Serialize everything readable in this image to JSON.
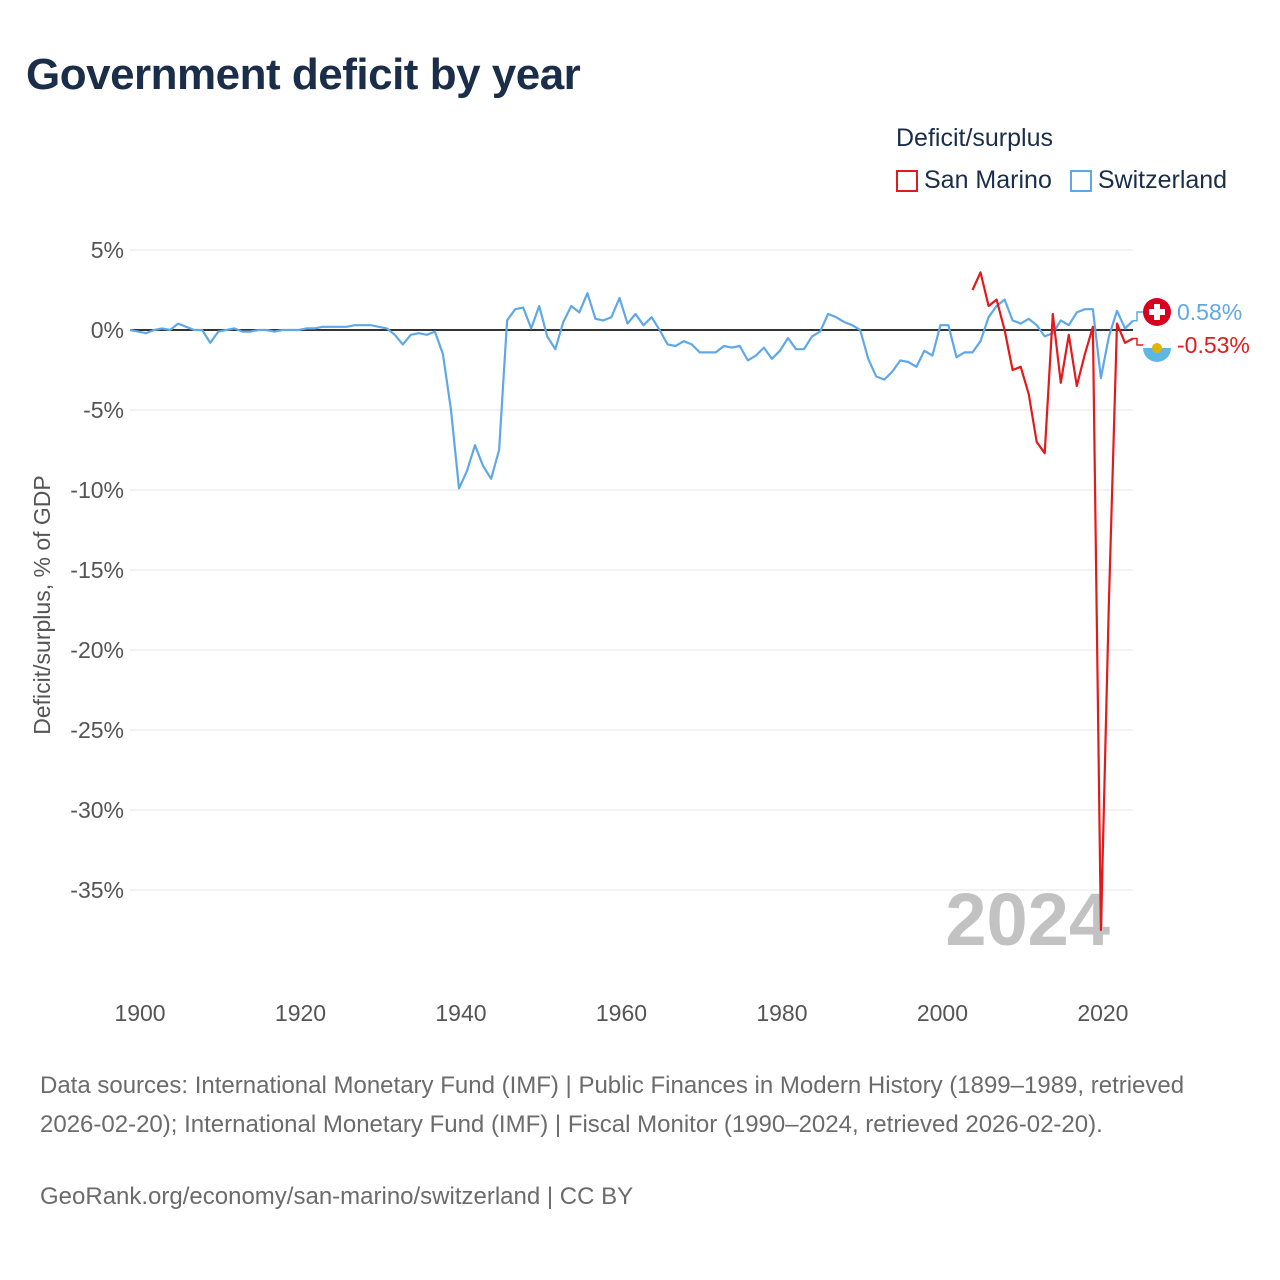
{
  "title": "Government deficit by year",
  "legend": {
    "title": "Deficit/surplus",
    "items": [
      {
        "name": "San Marino",
        "color": "#e31a1c"
      },
      {
        "name": "Switzerland",
        "color": "#5fa8e8"
      }
    ]
  },
  "chart_data": {
    "type": "line",
    "title": "Government deficit by year",
    "xlabel": "",
    "ylabel": "Deficit/surplus, % of GDP",
    "xlim": [
      1899,
      2024
    ],
    "ylim": [
      -38.5,
      5
    ],
    "x_ticks": [
      1900,
      1920,
      1940,
      1960,
      1980,
      2000,
      2020
    ],
    "y_ticks": [
      5,
      0,
      -5,
      -10,
      -15,
      -20,
      -25,
      -30,
      -35
    ],
    "y_tick_labels": [
      "5%",
      "0%",
      "-5%",
      "-10%",
      "-15%",
      "-20%",
      "-25%",
      "-30%",
      "-35%"
    ],
    "x_tick_labels": [
      "1900",
      "1920",
      "1940",
      "1960",
      "1980",
      "2000",
      "2020"
    ],
    "highlight_year": "2024",
    "zero_line": true,
    "grid": true,
    "series": [
      {
        "name": "Switzerland",
        "color": "#5fa8e8",
        "end_label": "0.58%",
        "x": [
          1899,
          1900,
          1901,
          1902,
          1903,
          1904,
          1905,
          1906,
          1907,
          1908,
          1909,
          1910,
          1911,
          1912,
          1913,
          1914,
          1915,
          1916,
          1917,
          1918,
          1919,
          1920,
          1921,
          1922,
          1923,
          1924,
          1925,
          1926,
          1927,
          1928,
          1929,
          1930,
          1931,
          1932,
          1933,
          1934,
          1935,
          1936,
          1937,
          1938,
          1939,
          1940,
          1941,
          1942,
          1943,
          1944,
          1945,
          1946,
          1947,
          1948,
          1949,
          1950,
          1951,
          1952,
          1953,
          1954,
          1955,
          1956,
          1957,
          1958,
          1959,
          1960,
          1961,
          1962,
          1963,
          1964,
          1965,
          1966,
          1967,
          1968,
          1969,
          1970,
          1971,
          1972,
          1973,
          1974,
          1975,
          1976,
          1977,
          1978,
          1979,
          1980,
          1981,
          1982,
          1983,
          1984,
          1985,
          1986,
          1987,
          1988,
          1989,
          1990,
          1991,
          1992,
          1993,
          1994,
          1995,
          1996,
          1997,
          1998,
          1999,
          2000,
          2001,
          2002,
          2003,
          2004,
          2005,
          2006,
          2007,
          2008,
          2009,
          2010,
          2011,
          2012,
          2013,
          2014,
          2015,
          2016,
          2017,
          2018,
          2019,
          2020,
          2021,
          2022,
          2023,
          2024
        ],
        "values": [
          0.0,
          -0.1,
          -0.2,
          0.0,
          0.1,
          0.0,
          0.4,
          0.2,
          0.0,
          0.0,
          -0.8,
          -0.1,
          0.0,
          0.1,
          -0.1,
          -0.1,
          0.0,
          0.0,
          -0.1,
          0.0,
          0.0,
          0.0,
          0.1,
          0.1,
          0.2,
          0.2,
          0.2,
          0.2,
          0.3,
          0.3,
          0.3,
          0.2,
          0.1,
          -0.3,
          -0.9,
          -0.3,
          -0.2,
          -0.3,
          -0.1,
          -1.5,
          -5.0,
          -9.9,
          -8.8,
          -7.2,
          -8.5,
          -9.3,
          -7.5,
          0.6,
          1.3,
          1.4,
          0.1,
          1.5,
          -0.4,
          -1.2,
          0.5,
          1.5,
          1.1,
          2.3,
          0.7,
          0.6,
          0.8,
          2.0,
          0.4,
          1.0,
          0.3,
          0.8,
          0.0,
          -0.9,
          -1.0,
          -0.7,
          -0.9,
          -1.4,
          -1.4,
          -1.4,
          -1.0,
          -1.1,
          -1.0,
          -1.9,
          -1.6,
          -1.1,
          -1.8,
          -1.3,
          -0.5,
          -1.2,
          -1.2,
          -0.4,
          -0.1,
          1.0,
          0.8,
          0.5,
          0.3,
          0.0,
          -1.8,
          -2.9,
          -3.1,
          -2.6,
          -1.9,
          -2.0,
          -2.3,
          -1.3,
          -1.6,
          0.3,
          0.3,
          -1.7,
          -1.4,
          -1.4,
          -0.7,
          0.8,
          1.5,
          1.9,
          0.6,
          0.4,
          0.7,
          0.3,
          -0.4,
          -0.2,
          0.6,
          0.3,
          1.1,
          1.3,
          1.3,
          -3.0,
          -0.4,
          1.2,
          0.1,
          0.58
        ]
      },
      {
        "name": "San Marino",
        "color": "#e31a1c",
        "end_label": "-0.53%",
        "x": [
          2004,
          2005,
          2006,
          2007,
          2008,
          2009,
          2010,
          2011,
          2012,
          2013,
          2014,
          2015,
          2016,
          2017,
          2018,
          2019,
          2020,
          2021,
          2022,
          2023,
          2024
        ],
        "values": [
          2.5,
          3.6,
          1.5,
          1.9,
          0.0,
          -2.5,
          -2.3,
          -4.0,
          -7.0,
          -7.7,
          1.0,
          -3.3,
          -0.3,
          -3.5,
          -1.5,
          0.2,
          -37.5,
          -17.0,
          0.4,
          -0.8,
          -0.53
        ]
      }
    ]
  },
  "sources": "Data sources: International Monetary Fund (IMF) | Public Finances in Modern History (1899–1989, retrieved 2026-02-20); International Monetary Fund (IMF) | Fiscal Monitor (1990–2024, retrieved 2026-02-20).",
  "credit": "GeoRank.org/economy/san-marino/switzerland | CC BY"
}
